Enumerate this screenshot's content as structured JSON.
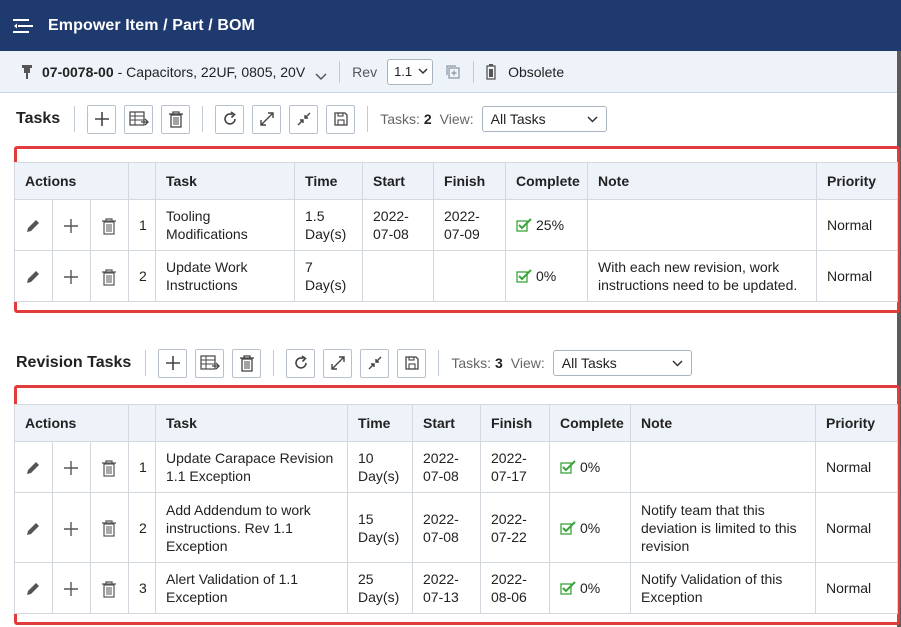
{
  "header": {
    "title": "Empower Item / Part / BOM",
    "menu_icon": "hamburger-icon"
  },
  "item_bar": {
    "part_number": "07-0078-00",
    "part_description": "- Capacitors, 22UF, 0805, 20V",
    "rev_label": "Rev",
    "rev_value": "1.1",
    "status": "Obsolete"
  },
  "tasks": {
    "title": "Tasks",
    "count_label": "Tasks:",
    "count": "2",
    "view_label": "View:",
    "view_value": "All Tasks",
    "columns": {
      "actions": "Actions",
      "task": "Task",
      "time": "Time",
      "start": "Start",
      "finish": "Finish",
      "complete": "Complete",
      "note": "Note",
      "priority": "Priority"
    },
    "rows": [
      {
        "num": "1",
        "task": "Tooling Modifications",
        "time": "1.5 Day(s)",
        "start": "2022-07-08",
        "finish": "2022-07-09",
        "complete": "25%",
        "note": "",
        "priority": "Normal"
      },
      {
        "num": "2",
        "task": "Update Work Instructions",
        "time": "7 Day(s)",
        "start": "",
        "finish": "",
        "complete": "0%",
        "note": "With each new revision, work instructions need to be updated.",
        "priority": "Normal"
      }
    ]
  },
  "revision_tasks": {
    "title": "Revision Tasks",
    "count_label": "Tasks:",
    "count": "3",
    "view_label": "View:",
    "view_value": "All Tasks",
    "columns": {
      "actions": "Actions",
      "task": "Task",
      "time": "Time",
      "start": "Start",
      "finish": "Finish",
      "complete": "Complete",
      "note": "Note",
      "priority": "Priority"
    },
    "rows": [
      {
        "num": "1",
        "task": "Update Carapace Revision 1.1 Exception",
        "time": "10 Day(s)",
        "start": "2022-07-08",
        "finish": "2022-07-17",
        "complete": "0%",
        "note": "",
        "priority": "Normal"
      },
      {
        "num": "2",
        "task": "Add Addendum to work instructions. Rev 1.1 Exception",
        "time": "15 Day(s)",
        "start": "2022-07-08",
        "finish": "2022-07-22",
        "complete": "0%",
        "note": "Notify team that this deviation is limited to this revision",
        "priority": "Normal"
      },
      {
        "num": "3",
        "task": "Alert Validation of 1.1 Exception",
        "time": "25 Day(s)",
        "start": "2022-07-13",
        "finish": "2022-08-06",
        "complete": "0%",
        "note": "Notify Validation of this Exception",
        "priority": "Normal"
      }
    ]
  },
  "colors": {
    "header_bg": "#1f3a6e",
    "grid_header_bg": "#eef3f9",
    "highlight_border": "#e23b3b",
    "check_green": "#3aa33a"
  }
}
